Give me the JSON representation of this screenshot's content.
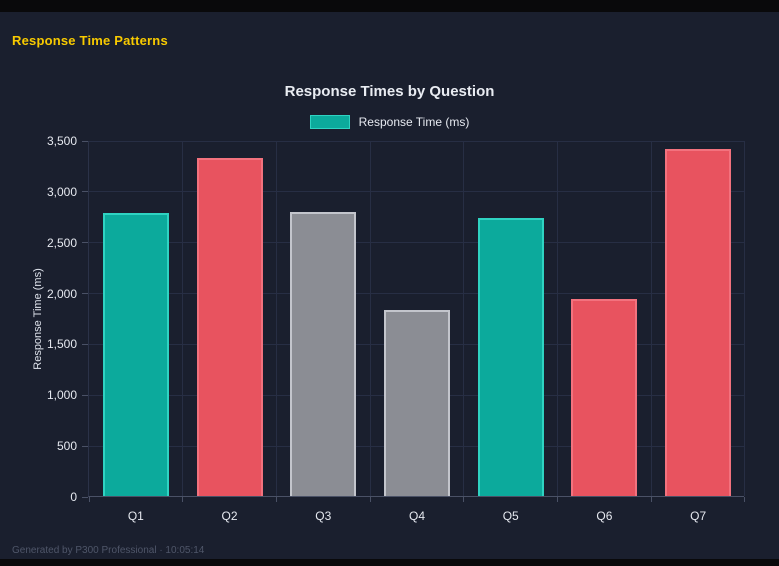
{
  "page": {
    "heading": "Response Time Patterns",
    "footer": "Generated by P300 Professional · 10:05:14"
  },
  "colors": {
    "background": "#1a1f2e",
    "top_strip": "#09090b",
    "heading_yellow": "#f8ca00",
    "text": "#e6e9f0",
    "muted_text": "#4f5669",
    "grid": "#272e44",
    "axis_line": "#4a5166"
  },
  "chart_data": {
    "type": "bar",
    "title": "Response Times by Question",
    "legend": [
      "Response Time (ms)"
    ],
    "legend_position": "top",
    "grid": true,
    "xlabel": "",
    "ylabel": "Response Time (ms)",
    "ylim": [
      0,
      3500
    ],
    "ytick_step": 500,
    "categories": [
      "Q1",
      "Q2",
      "Q3",
      "Q4",
      "Q5",
      "Q6",
      "Q7"
    ],
    "values": [
      2780,
      3320,
      2790,
      1830,
      2730,
      1940,
      3410
    ],
    "bar_color_keys": [
      "teal",
      "red",
      "gray",
      "gray",
      "teal",
      "red",
      "red"
    ],
    "palette": {
      "teal": {
        "fill": "#0caa9c",
        "border": "#2fd3c2"
      },
      "red": {
        "fill": "#e8535f",
        "border": "#f3727e"
      },
      "gray": {
        "fill": "#8b8d94",
        "border": "#c3c5cc"
      }
    }
  }
}
